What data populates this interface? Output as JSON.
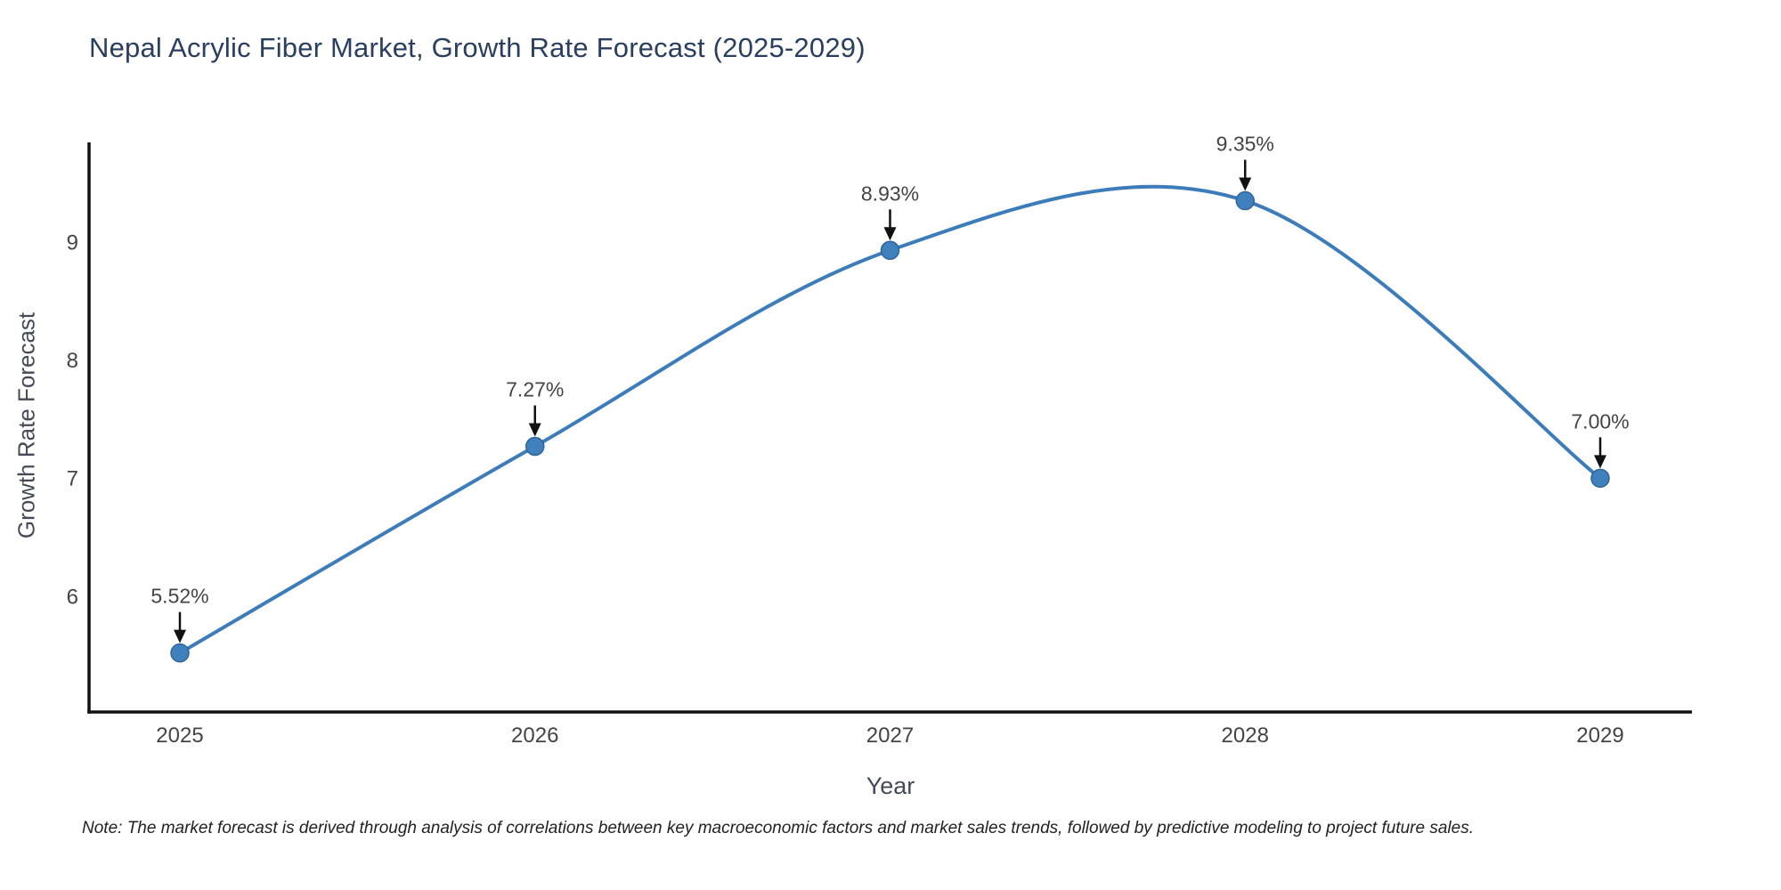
{
  "title": "Nepal Acrylic Fiber Market, Growth Rate Forecast (2025-2029)",
  "x_axis_title": "Year",
  "y_axis_title": "Growth Rate Forecast",
  "note": "Note: The market forecast is derived through analysis of correlations between key macroeconomic factors and market sales trends, followed by predictive modeling to project future sales.",
  "chart_data": {
    "type": "line",
    "title": "Nepal Acrylic Fiber Market, Growth Rate Forecast (2025-2029)",
    "xlabel": "Year",
    "ylabel": "Growth Rate Forecast",
    "x": [
      2025,
      2026,
      2027,
      2028,
      2029
    ],
    "values": [
      5.52,
      7.27,
      8.93,
      9.35,
      7.0
    ],
    "point_labels": [
      "5.52%",
      "7.27%",
      "8.93%",
      "9.35%",
      "7.00%"
    ],
    "x_tick_labels": [
      "2025",
      "2026",
      "2027",
      "2028",
      "2029"
    ],
    "y_ticks": [
      6,
      7,
      8,
      9
    ],
    "ylim": [
      5.0,
      9.85
    ],
    "line_shape": "spline",
    "grid": false,
    "legend_position": "none",
    "line_color": "#3d7cba",
    "marker_color": "#4080bd",
    "marker_edge_color": "#2f6699",
    "axis_line_color": "#111111",
    "tick_color": "#444444",
    "annotation_text_color": "#444444",
    "annotation_arrow_color": "#111111"
  }
}
